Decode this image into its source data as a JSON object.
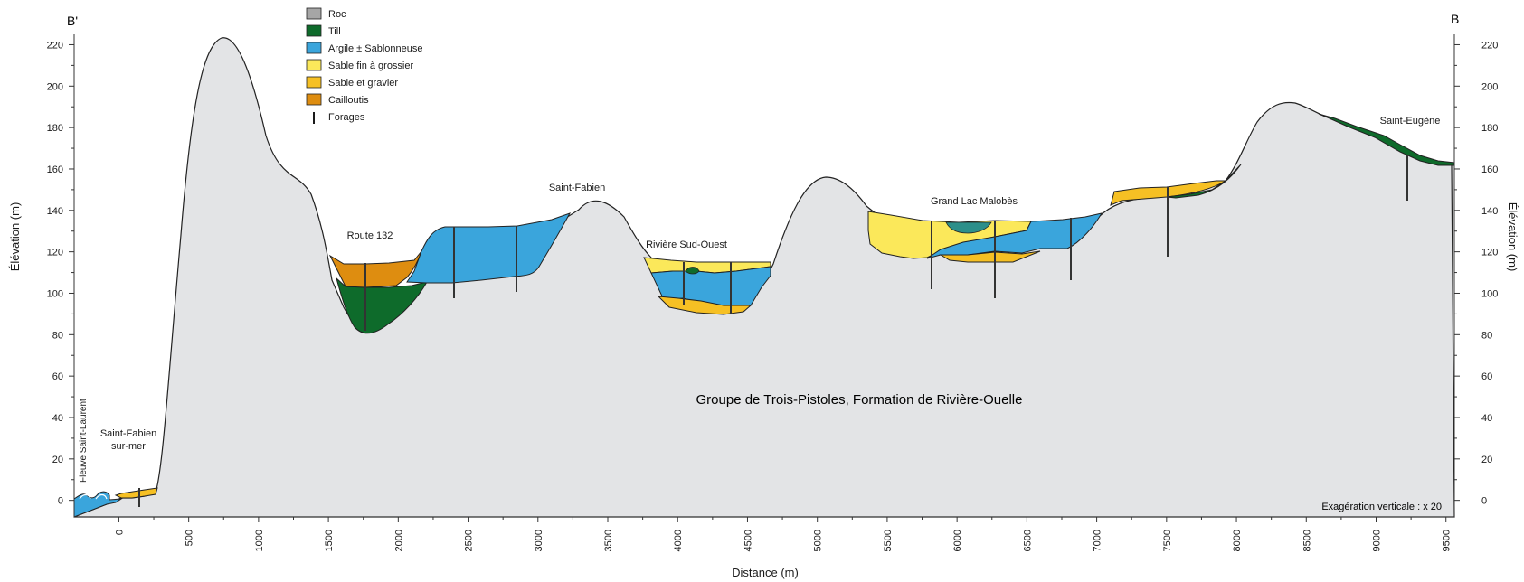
{
  "section_labels": {
    "left": "B'",
    "right": "B"
  },
  "axes": {
    "y_left_title": "Élévation (m)",
    "y_right_title": "Élévation (m)",
    "x_title": "Distance (m)",
    "y_ticks": [
      220,
      200,
      180,
      160,
      140,
      120,
      100,
      80,
      60,
      40,
      20,
      0
    ],
    "x_ticks": [
      0,
      500,
      1000,
      1500,
      2000,
      2500,
      3000,
      3500,
      4000,
      4500,
      5000,
      5500,
      6000,
      6500,
      7000,
      7500,
      8000,
      8500,
      9000,
      9500
    ],
    "ylim": [
      -8,
      225
    ],
    "xlim": [
      -320,
      9560
    ]
  },
  "legend": [
    {
      "label": "Roc",
      "color": "#a6a6a6"
    },
    {
      "label": "Till",
      "color": "#0e6b2b"
    },
    {
      "label": "Argile ± Sablonneuse",
      "color": "#3aa5dc"
    },
    {
      "label": "Sable fin à grossier",
      "color": "#fbe85a"
    },
    {
      "label": "Sable et gravier",
      "color": "#f6c024"
    },
    {
      "label": "Cailloutis",
      "color": "#de8d10"
    },
    {
      "label": "Forages",
      "color": "#1a1a1a"
    }
  ],
  "places": {
    "fleuve": "Fleuve Saint-Laurent",
    "saint_fabien_sur_mer_1": "Saint-Fabien",
    "saint_fabien_sur_mer_2": "sur-mer",
    "route_132": "Route 132",
    "saint_fabien": "Saint-Fabien",
    "riviere_sud_ouest": "Rivière Sud-Ouest",
    "grand_lac": "Grand Lac Malobès",
    "saint_eugene": "Saint-Eugène"
  },
  "formation_label": "Groupe de Trois-Pistoles, Formation de Rivière-Ouelle",
  "exaggeration": "Exagération verticale : x 20",
  "colors": {
    "bedrock": "#e3e4e6",
    "till": "#0e6b2b",
    "clay": "#3aa5dc",
    "fine_sand": "#fbe85a",
    "sand_gravel": "#f6c024",
    "gravel": "#de8d10",
    "water": "#3aa5dc"
  }
}
